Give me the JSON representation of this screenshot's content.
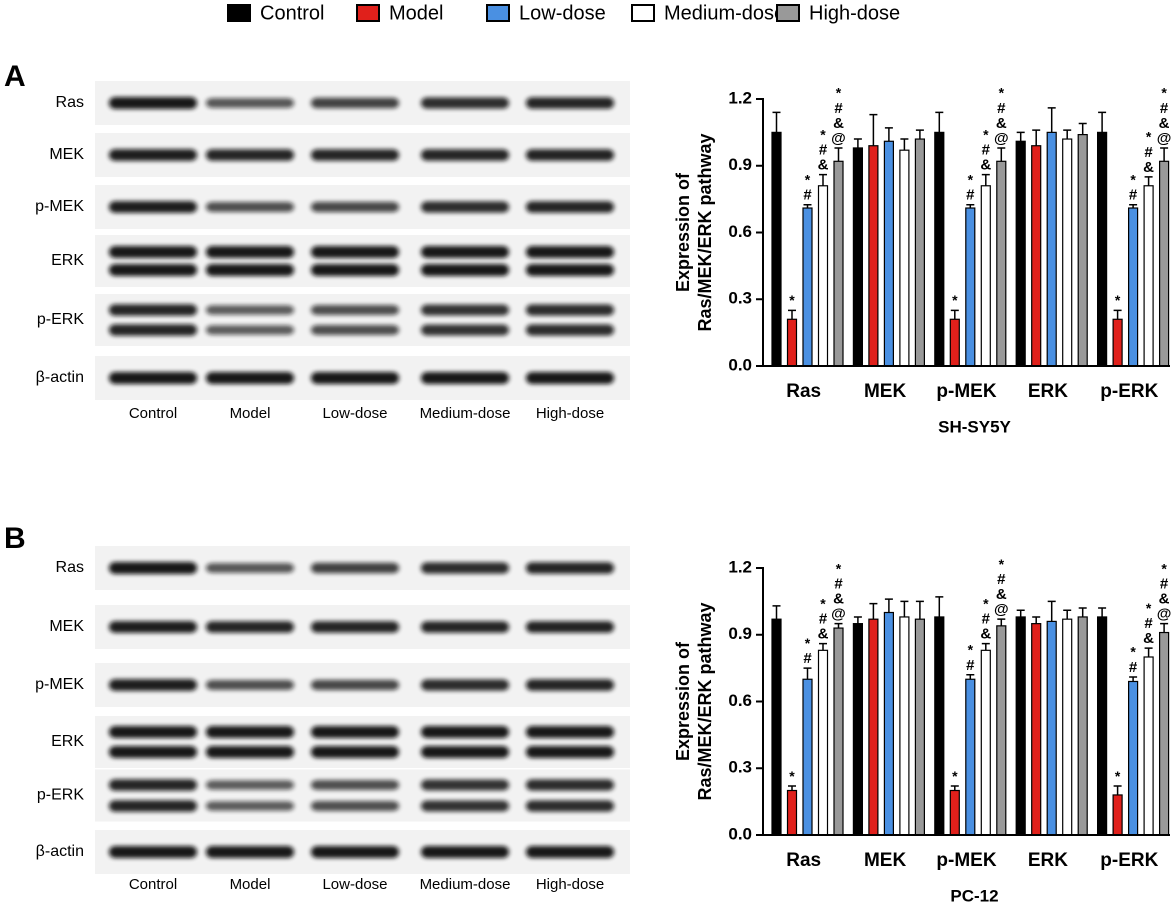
{
  "chart_data": [
    {
      "type": "bar",
      "xlabel": "SH-SY5Y",
      "ylabel": [
        "Expression of",
        "Ras/MEK/ERK pathway"
      ],
      "categories": [
        "Ras",
        "MEK",
        "p-MEK",
        "ERK",
        "p-ERK"
      ],
      "ylim": [
        0,
        1.2
      ],
      "yticks": [
        {
          "value": 0,
          "label": "0.0"
        },
        0.3,
        0.6,
        0.9,
        1.2
      ],
      "series": [
        {
          "name": "Control",
          "color": "#000000",
          "values": [
            1.05,
            0.98,
            1.05,
            1.01,
            1.05
          ],
          "errors": [
            0.09,
            0.04,
            0.09,
            0.04,
            0.09
          ]
        },
        {
          "name": "Model",
          "color": "#e0201b",
          "values": [
            0.21,
            0.99,
            0.21,
            0.99,
            0.21
          ],
          "errors": [
            0.04,
            0.14,
            0.04,
            0.07,
            0.04
          ],
          "marks": [
            [
              "*"
            ],
            null,
            [
              "*"
            ],
            null,
            [
              "*"
            ]
          ]
        },
        {
          "name": "Low-dose",
          "color": "#4a90e2",
          "values": [
            0.71,
            1.01,
            0.71,
            1.05,
            0.71
          ],
          "errors": [
            0.015,
            0.06,
            0.015,
            0.11,
            0.015
          ],
          "marks": [
            [
              "*",
              "#"
            ],
            null,
            [
              "*",
              "#"
            ],
            null,
            [
              "*",
              "#"
            ]
          ]
        },
        {
          "name": "Medium-dose",
          "color": "#ffffff",
          "values": [
            0.81,
            0.97,
            0.81,
            1.02,
            0.81
          ],
          "errors": [
            0.05,
            0.05,
            0.05,
            0.04,
            0.04
          ],
          "marks": [
            [
              "*",
              "#",
              "&"
            ],
            null,
            [
              "*",
              "#",
              "&"
            ],
            null,
            [
              "*",
              "#",
              "&"
            ]
          ]
        },
        {
          "name": "High-dose",
          "color": "#999999",
          "values": [
            0.92,
            1.02,
            0.92,
            1.04,
            0.92
          ],
          "errors": [
            0.06,
            0.04,
            0.06,
            0.05,
            0.06
          ],
          "marks": [
            [
              "*",
              "#",
              "&",
              "@"
            ],
            null,
            [
              "*",
              "#",
              "&",
              "@"
            ],
            null,
            [
              "*",
              "#",
              "&",
              "@"
            ]
          ]
        }
      ]
    },
    {
      "type": "bar",
      "xlabel": "PC-12",
      "ylabel": [
        "Expression of",
        "Ras/MEK/ERK pathway"
      ],
      "categories": [
        "Ras",
        "MEK",
        "p-MEK",
        "ERK",
        "p-ERK"
      ],
      "ylim": [
        0,
        1.2
      ],
      "yticks": [
        {
          "value": 0,
          "label": "0.0"
        },
        0.3,
        0.6,
        0.9,
        1.2
      ],
      "series": [
        {
          "color": "#000000",
          "values": [
            0.97,
            0.95,
            0.98,
            0.98,
            0.98
          ],
          "errors": [
            0.06,
            0.03,
            0.09,
            0.03,
            0.04
          ]
        },
        {
          "color": "#e0201b",
          "values": [
            0.2,
            0.97,
            0.2,
            0.95,
            0.18
          ],
          "errors": [
            0.02,
            0.07,
            0.02,
            0.03,
            0.04
          ],
          "marks": [
            [
              "*"
            ],
            null,
            [
              "*"
            ],
            null,
            [
              "*"
            ]
          ]
        },
        {
          "color": "#4a90e2",
          "values": [
            0.7,
            1.0,
            0.7,
            0.96,
            0.69
          ],
          "errors": [
            0.05,
            0.06,
            0.02,
            0.09,
            0.02
          ],
          "marks": [
            [
              "*",
              "#"
            ],
            null,
            [
              "*",
              "#"
            ],
            null,
            [
              "*",
              "#"
            ]
          ]
        },
        {
          "color": "#ffffff",
          "values": [
            0.83,
            0.98,
            0.83,
            0.97,
            0.8
          ],
          "errors": [
            0.03,
            0.07,
            0.03,
            0.04,
            0.04
          ],
          "marks": [
            [
              "*",
              "#",
              "&"
            ],
            null,
            [
              "*",
              "#",
              "&"
            ],
            null,
            [
              "*",
              "#",
              "&"
            ]
          ]
        },
        {
          "color": "#999999",
          "values": [
            0.93,
            0.97,
            0.94,
            0.98,
            0.91
          ],
          "errors": [
            0.02,
            0.08,
            0.03,
            0.04,
            0.04
          ],
          "marks": [
            [
              "*",
              "#",
              "&",
              "@"
            ],
            null,
            [
              "*",
              "#",
              "&",
              "@"
            ],
            null,
            [
              "*",
              "#",
              "&",
              "@"
            ]
          ]
        }
      ]
    }
  ],
  "panels": [
    {
      "letter": "A",
      "rows": [
        "Ras",
        "MEK",
        "p-MEK",
        "ERK",
        "p-ERK",
        "β-actin"
      ],
      "lanes": [
        "Control",
        "Model",
        "Low-dose",
        "Medium-dose",
        "High-dose"
      ]
    },
    {
      "letter": "B",
      "rows": [
        "Ras",
        "MEK",
        "p-MEK",
        "ERK",
        "p-ERK",
        "β-actin"
      ],
      "lanes": [
        "Control",
        "Model",
        "Low-dose",
        "Medium-dose",
        "High-dose"
      ]
    }
  ]
}
